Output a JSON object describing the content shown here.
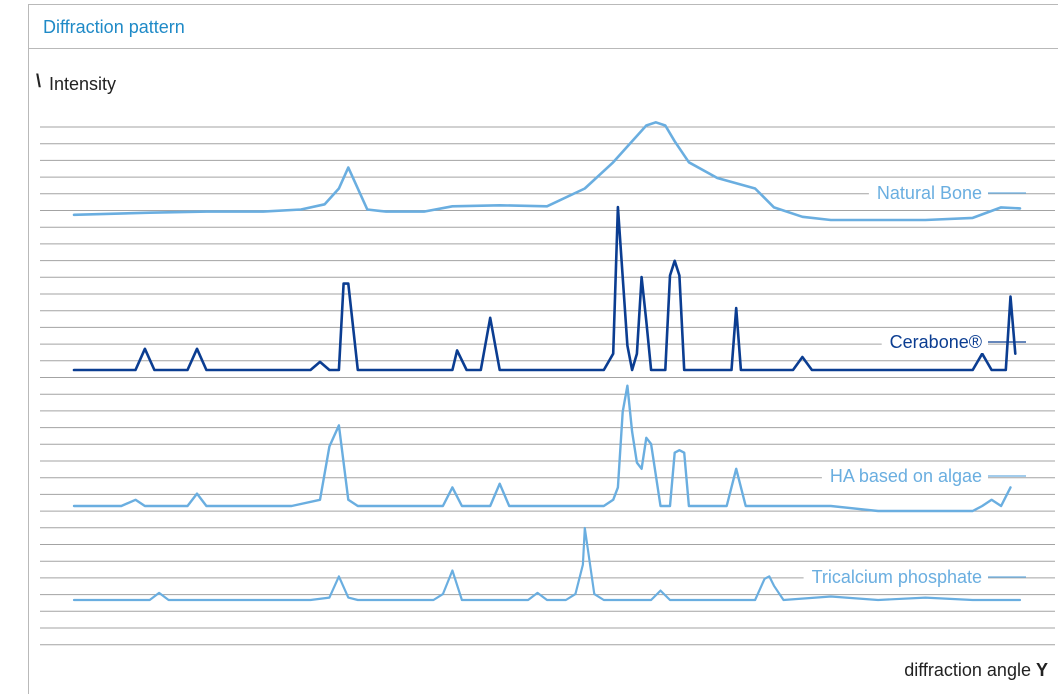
{
  "header": {
    "title": "Diffraction pattern"
  },
  "axes": {
    "y_mark": "\\",
    "y_label": "Intensity",
    "x_label": "diffraction angle",
    "x_mark": "Y"
  },
  "colors": {
    "light": "#6aaee0",
    "dark": "#0b3d91",
    "grid": "#a3a3a3",
    "title": "#1f8ac7"
  },
  "chart_data": {
    "type": "line",
    "title": "Diffraction pattern",
    "xlabel": "diffraction angle",
    "ylabel": "Intensity",
    "grid": true,
    "legend": "inline labels at right",
    "note_units": "x and y are relative (x 0-100, y arbitrary intensity 0-10)",
    "series": [
      {
        "name": "Natural Bone",
        "color": "#6aaee0",
        "x": [
          0,
          8,
          14,
          20,
          24,
          26.5,
          28,
          29,
          30,
          31,
          33,
          37,
          40,
          45,
          50,
          54,
          57,
          59,
          60.5,
          61.5,
          62.5,
          63.5,
          65,
          68,
          72,
          74,
          77,
          80,
          85,
          90,
          95,
          98,
          100
        ],
        "y": [
          0.5,
          0.7,
          0.8,
          0.8,
          1.0,
          1.5,
          3.0,
          5.0,
          3.0,
          1.0,
          0.8,
          0.8,
          1.3,
          1.4,
          1.3,
          3.0,
          5.5,
          7.5,
          9.0,
          9.3,
          9.0,
          7.5,
          5.5,
          4.0,
          3.0,
          1.2,
          0.3,
          0.0,
          0.0,
          0.0,
          0.2,
          1.2,
          1.1
        ]
      },
      {
        "name": "Cerabone®",
        "color": "#0b3d91",
        "x": [
          0,
          6.5,
          7.5,
          8.5,
          12,
          13,
          14,
          25,
          26,
          27,
          28,
          28.5,
          29,
          30,
          40,
          40.5,
          41.5,
          43,
          44,
          45,
          46,
          56,
          57,
          57.5,
          58.5,
          59,
          59.5,
          60,
          60.5,
          61,
          61.5,
          62.5,
          63,
          63.5,
          64,
          64.5,
          65,
          65.5,
          66,
          69.5,
          70,
          70.5,
          71,
          76,
          77,
          78,
          86,
          95,
          96,
          97,
          98.5,
          99,
          99.5
        ],
        "y": [
          0,
          0,
          1.3,
          0,
          0,
          1.3,
          0,
          0,
          0.5,
          0,
          0,
          5.3,
          5.3,
          0,
          0,
          1.2,
          0,
          0,
          3.2,
          0,
          0,
          0,
          1.0,
          10.0,
          1.5,
          0,
          1.0,
          5.7,
          3.0,
          0,
          0,
          0,
          5.8,
          6.7,
          5.8,
          0,
          0,
          0,
          0,
          0,
          3.8,
          0,
          0,
          0,
          0.8,
          0,
          0,
          0,
          1.0,
          0,
          0,
          4.5,
          1.0
        ]
      },
      {
        "name": "HA based on algae",
        "color": "#6aaee0",
        "x": [
          0,
          5,
          6.5,
          7.5,
          9,
          12,
          13,
          14,
          23,
          26,
          27,
          28,
          29,
          30,
          39,
          40,
          41,
          44,
          45,
          46,
          56,
          57,
          57.5,
          58,
          58.5,
          59,
          59.5,
          60,
          60.5,
          61,
          62,
          63,
          63.5,
          64,
          64.5,
          65,
          69,
          70,
          71,
          80,
          85,
          95,
          96,
          97,
          98,
          99
        ],
        "y": [
          0,
          0,
          0.5,
          0,
          0,
          0,
          1.0,
          0,
          0,
          0.5,
          4.8,
          6.5,
          0.5,
          0,
          0,
          1.5,
          0,
          0,
          1.8,
          0,
          0,
          0.5,
          1.5,
          7.6,
          9.7,
          6.0,
          3.5,
          3.0,
          5.5,
          5.0,
          0,
          0,
          4.3,
          4.5,
          4.3,
          0,
          0,
          3.0,
          0,
          0,
          -0.4,
          -0.4,
          0,
          0.5,
          0,
          1.5
        ]
      },
      {
        "name": "Tricalcium phosphate",
        "color": "#6aaee0",
        "x": [
          0,
          5,
          8,
          9,
          10,
          25,
          27,
          28,
          29,
          30,
          38,
          39,
          40,
          41,
          46,
          48,
          49,
          50,
          52,
          53,
          53.8,
          54,
          55,
          56,
          61,
          62,
          63,
          65,
          72,
          73,
          73.5,
          74,
          75,
          80,
          85,
          90,
          95,
          100
        ],
        "y": [
          0,
          0,
          0,
          0.6,
          0,
          0,
          0.2,
          2.0,
          0.2,
          0,
          0,
          0.5,
          2.5,
          0,
          0,
          0,
          0.6,
          0,
          0,
          0.5,
          3.0,
          6.1,
          0.5,
          0,
          0,
          0.8,
          0,
          0,
          0,
          1.8,
          2.0,
          1.2,
          0,
          0.3,
          0,
          0.2,
          0,
          0
        ]
      }
    ]
  }
}
